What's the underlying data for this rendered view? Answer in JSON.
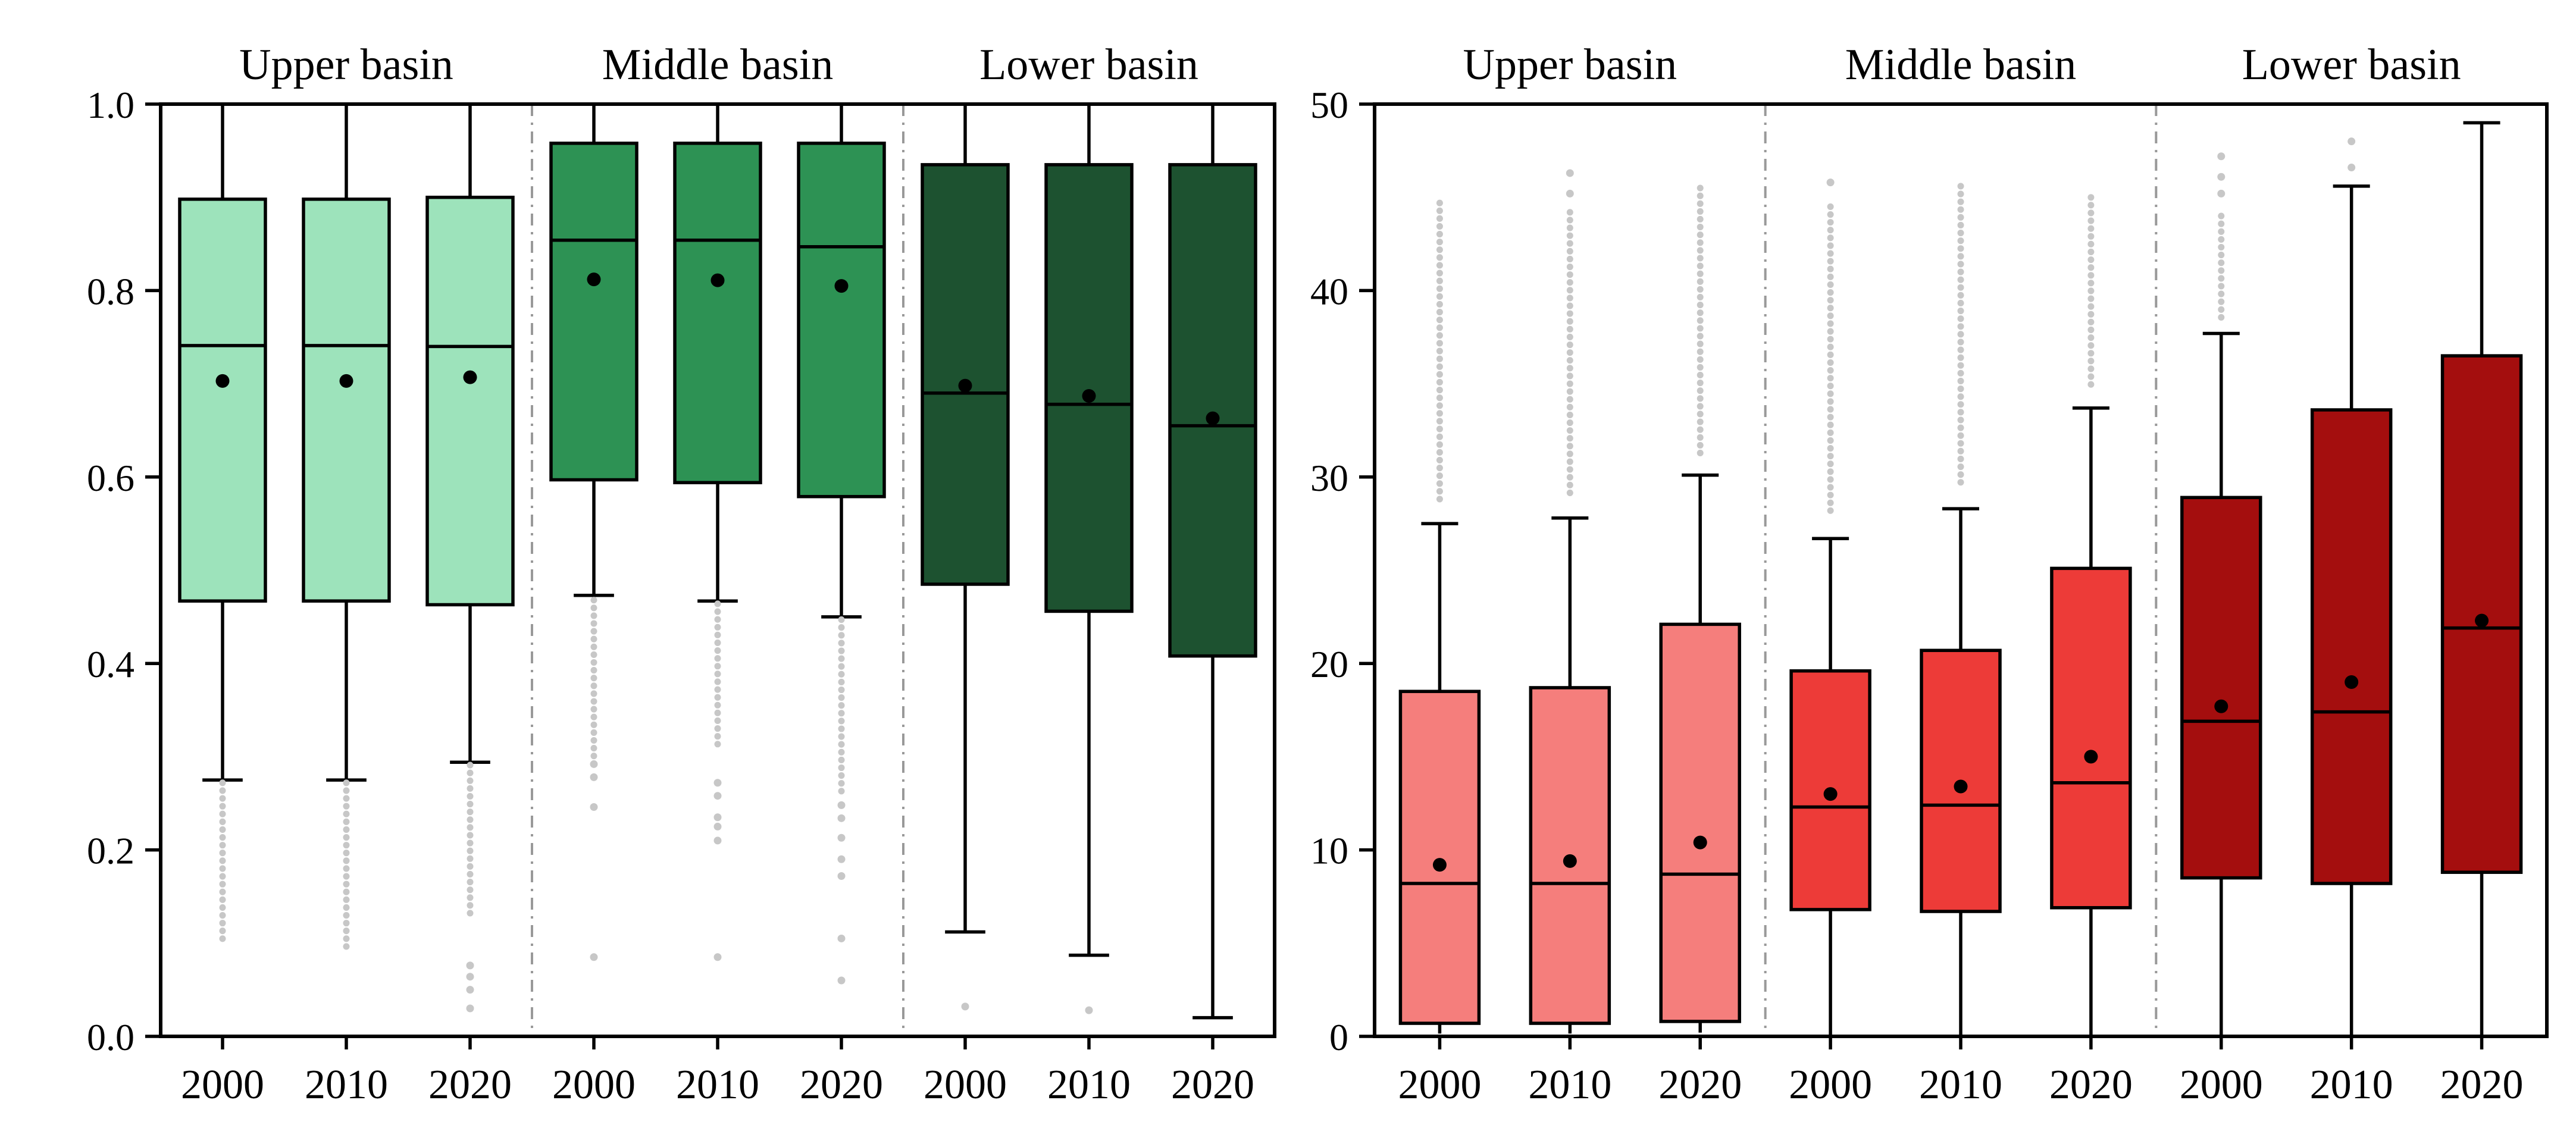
{
  "figure": {
    "background": "#ffffff",
    "outlier_color": "#c7c7c7",
    "separator_color": "#999999",
    "axis_color": "#000000",
    "mean_dot_color": "#000000",
    "median_color": "#000000",
    "box_border_color": "#000000"
  },
  "chart_data": [
    {
      "type": "box",
      "panel": "left",
      "title": "",
      "xlabel": "",
      "ylabel": "",
      "ylim": [
        0.0,
        1.0
      ],
      "grid": false,
      "legend_position": "none",
      "yticks": [
        {
          "label": "1.0",
          "value": 1.0
        },
        {
          "label": "0.8",
          "value": 0.8
        },
        {
          "label": "0.6",
          "value": 0.6
        },
        {
          "label": "0.4",
          "value": 0.4
        },
        {
          "label": "0.2",
          "value": 0.2
        },
        {
          "label": "0.0",
          "value": 0.0
        }
      ],
      "groups": [
        {
          "title": "Upper basin",
          "fill": "#9de3bb",
          "boxes": [
            {
              "year": "2000",
              "whisker_low": 0.275,
              "q1": 0.467,
              "median": 0.741,
              "mean": 0.703,
              "q3": 0.898,
              "whisker_high": 1.0,
              "outlier_trail": [
                0.1,
                0.272
              ],
              "outlier_dots": []
            },
            {
              "year": "2010",
              "whisker_low": 0.275,
              "q1": 0.467,
              "median": 0.741,
              "mean": 0.703,
              "q3": 0.898,
              "whisker_high": 1.0,
              "outlier_trail": [
                0.092,
                0.272
              ],
              "outlier_dots": []
            },
            {
              "year": "2020",
              "whisker_low": 0.294,
              "q1": 0.463,
              "median": 0.74,
              "mean": 0.707,
              "q3": 0.9,
              "whisker_high": 1.0,
              "outlier_trail": [
                0.13,
                0.291
              ],
              "outlier_dots": [
                0.076,
                0.064,
                0.05,
                0.03
              ]
            }
          ]
        },
        {
          "title": "Middle basin",
          "fill": "#2d9254",
          "boxes": [
            {
              "year": "2000",
              "whisker_low": 0.473,
              "q1": 0.597,
              "median": 0.854,
              "mean": 0.812,
              "q3": 0.958,
              "whisker_high": 1.0,
              "outlier_trail": [
                0.3,
                0.468
              ],
              "outlier_dots": [
                0.292,
                0.278,
                0.246,
                0.085
              ]
            },
            {
              "year": "2010",
              "whisker_low": 0.467,
              "q1": 0.594,
              "median": 0.854,
              "mean": 0.811,
              "q3": 0.958,
              "whisker_high": 1.0,
              "outlier_trail": [
                0.31,
                0.464
              ],
              "outlier_dots": [
                0.272,
                0.258,
                0.235,
                0.225,
                0.21,
                0.085
              ]
            },
            {
              "year": "2020",
              "whisker_low": 0.45,
              "q1": 0.579,
              "median": 0.847,
              "mean": 0.805,
              "q3": 0.958,
              "whisker_high": 1.0,
              "outlier_trail": [
                0.26,
                0.447
              ],
              "outlier_dots": [
                0.248,
                0.234,
                0.213,
                0.19,
                0.172,
                0.105,
                0.06
              ]
            }
          ]
        },
        {
          "title": "Lower basin",
          "fill": "#1d5230",
          "boxes": [
            {
              "year": "2000",
              "whisker_low": 0.112,
              "q1": 0.485,
              "median": 0.69,
              "mean": 0.698,
              "q3": 0.935,
              "whisker_high": 1.0,
              "outlier_trail": null,
              "outlier_dots": [
                0.032
              ]
            },
            {
              "year": "2010",
              "whisker_low": 0.087,
              "q1": 0.456,
              "median": 0.678,
              "mean": 0.687,
              "q3": 0.935,
              "whisker_high": 1.0,
              "outlier_trail": null,
              "outlier_dots": [
                0.028
              ]
            },
            {
              "year": "2020",
              "whisker_low": 0.02,
              "q1": 0.408,
              "median": 0.655,
              "mean": 0.663,
              "q3": 0.935,
              "whisker_high": 1.0,
              "outlier_trail": null,
              "outlier_dots": []
            }
          ]
        }
      ]
    },
    {
      "type": "box",
      "panel": "right",
      "title": "",
      "xlabel": "",
      "ylabel": "",
      "ylim": [
        0,
        50
      ],
      "grid": false,
      "legend_position": "none",
      "yticks": [
        {
          "label": "50",
          "value": 50
        },
        {
          "label": "40",
          "value": 40
        },
        {
          "label": "30",
          "value": 30
        },
        {
          "label": "20",
          "value": 20
        },
        {
          "label": "10",
          "value": 10
        },
        {
          "label": "0",
          "value": 0
        }
      ],
      "groups": [
        {
          "title": "Upper basin",
          "fill": "#f57e7c",
          "boxes": [
            {
              "year": "2000",
              "whisker_low": 0.15,
              "q1": 0.7,
              "median": 8.2,
              "mean": 9.2,
              "q3": 18.5,
              "whisker_high": 27.5,
              "outlier_trail": [
                28.6,
                44.7
              ],
              "outlier_dots": []
            },
            {
              "year": "2010",
              "whisker_low": 0.15,
              "q1": 0.7,
              "median": 8.2,
              "mean": 9.4,
              "q3": 18.7,
              "whisker_high": 27.8,
              "outlier_trail": [
                28.8,
                44.2
              ],
              "outlier_dots": [
                45.2,
                46.3
              ]
            },
            {
              "year": "2020",
              "whisker_low": 0.2,
              "q1": 0.8,
              "median": 8.7,
              "mean": 10.4,
              "q3": 22.1,
              "whisker_high": 30.1,
              "outlier_trail": [
                31.2,
                45.5
              ],
              "outlier_dots": []
            }
          ]
        },
        {
          "title": "Middle basin",
          "fill": "#ed3b38",
          "boxes": [
            {
              "year": "2000",
              "whisker_low": 0,
              "q1": 6.8,
              "median": 12.3,
              "mean": 13.0,
              "q3": 19.6,
              "whisker_high": 26.7,
              "outlier_trail": [
                27.8,
                44.5
              ],
              "outlier_dots": [
                45.8
              ]
            },
            {
              "year": "2010",
              "whisker_low": 0,
              "q1": 6.7,
              "median": 12.4,
              "mean": 13.4,
              "q3": 20.7,
              "whisker_high": 28.3,
              "outlier_trail": [
                29.3,
                45.6
              ],
              "outlier_dots": []
            },
            {
              "year": "2020",
              "whisker_low": 0,
              "q1": 6.9,
              "median": 13.6,
              "mean": 15.0,
              "q3": 25.1,
              "whisker_high": 33.7,
              "outlier_trail": [
                34.8,
                45.0
              ],
              "outlier_dots": []
            }
          ]
        },
        {
          "title": "Lower basin",
          "fill": "#a40e0e",
          "boxes": [
            {
              "year": "2000",
              "whisker_low": 0,
              "q1": 8.5,
              "median": 16.9,
              "mean": 17.7,
              "q3": 28.9,
              "whisker_high": 37.7,
              "outlier_trail": [
                38.3,
                44.0
              ],
              "outlier_dots": [
                45.2,
                46.1,
                47.2
              ]
            },
            {
              "year": "2010",
              "whisker_low": 0,
              "q1": 8.2,
              "median": 17.4,
              "mean": 19.0,
              "q3": 33.6,
              "whisker_high": 45.6,
              "outlier_trail": null,
              "outlier_dots": [
                46.6,
                48.0
              ]
            },
            {
              "year": "2020",
              "whisker_low": 0,
              "q1": 8.8,
              "median": 21.9,
              "mean": 22.3,
              "q3": 36.5,
              "whisker_high": 49.0,
              "outlier_trail": null,
              "outlier_dots": []
            }
          ]
        }
      ]
    }
  ]
}
